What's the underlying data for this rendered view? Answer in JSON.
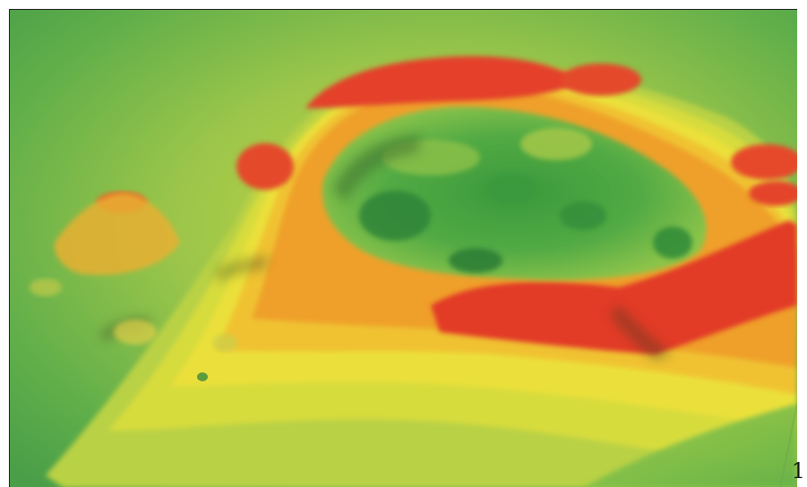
{
  "figure": {
    "number_label": "1",
    "colors": {
      "low": "#4fa64a",
      "mid_low": "#9cc64a",
      "mid": "#e8e23a",
      "mid_high": "#f0a02a",
      "high": "#e83a2a",
      "crater_floor": "#2f8f3a",
      "shadow": "#1f5a2a"
    }
  }
}
